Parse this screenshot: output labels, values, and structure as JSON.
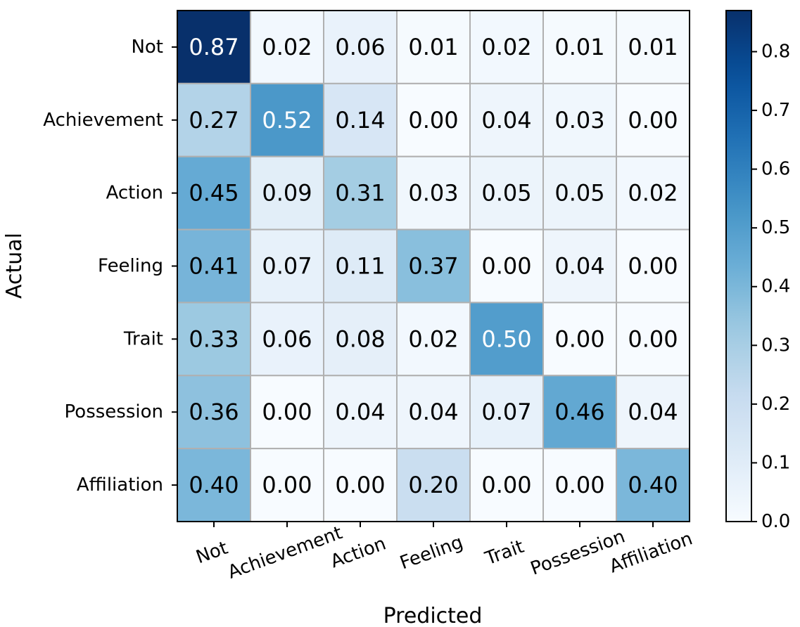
{
  "chart_data": {
    "type": "heatmap",
    "title": "",
    "xlabel": "Predicted",
    "ylabel": "Actual",
    "row_labels": [
      "Not",
      "Achievement",
      "Action",
      "Feeling",
      "Trait",
      "Possession",
      "Affiliation"
    ],
    "col_labels": [
      "Not",
      "Achievement",
      "Action",
      "Feeling",
      "Trait",
      "Possession",
      "Affiliation"
    ],
    "values": [
      [
        0.87,
        0.02,
        0.06,
        0.01,
        0.02,
        0.01,
        0.01
      ],
      [
        0.27,
        0.52,
        0.14,
        0.0,
        0.04,
        0.03,
        0.0
      ],
      [
        0.45,
        0.09,
        0.31,
        0.03,
        0.05,
        0.05,
        0.02
      ],
      [
        0.41,
        0.07,
        0.11,
        0.37,
        0.0,
        0.04,
        0.0
      ],
      [
        0.33,
        0.06,
        0.08,
        0.02,
        0.5,
        0.0,
        0.0
      ],
      [
        0.36,
        0.0,
        0.04,
        0.04,
        0.07,
        0.46,
        0.04
      ],
      [
        0.4,
        0.0,
        0.0,
        0.2,
        0.0,
        0.0,
        0.4
      ]
    ],
    "colormap": "Blues",
    "color_range": [
      0.0,
      0.87
    ],
    "colorbar_ticks": [
      0.0,
      0.1,
      0.2,
      0.3,
      0.4,
      0.5,
      0.6,
      0.7,
      0.8
    ],
    "colorbar_tick_labels": [
      "0.0",
      "0.1",
      "0.2",
      "0.3",
      "0.4",
      "0.5",
      "0.6",
      "0.7",
      "0.8"
    ],
    "text_color_dark": "#000000",
    "text_color_light": "#ffffff",
    "grid_color": "#b0b0b0"
  }
}
